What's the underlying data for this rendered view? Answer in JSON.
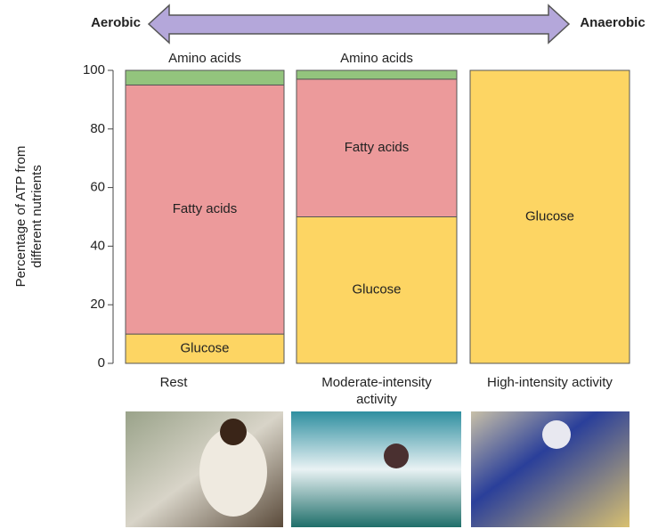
{
  "chart_data": {
    "type": "stacked_bar",
    "arrow_labels": [
      "Aerobic",
      "Anaerobic"
    ],
    "y_label": [
      "Percentage of ATP from",
      "different nutrients"
    ],
    "categories": [
      "Rest",
      "Moderate-intensity activity",
      "High-intensity activity"
    ],
    "series": [
      {
        "name": "Glucose",
        "color": "#fdd563",
        "values": [
          10,
          50,
          100
        ]
      },
      {
        "name": "Fatty acids",
        "color": "#ec9a9b",
        "values": [
          85,
          47,
          0
        ]
      },
      {
        "name": "Amino acids",
        "color": "#93c47d",
        "values": [
          5,
          3,
          0
        ]
      }
    ],
    "ylim": [
      0,
      100
    ],
    "yticks": [
      0,
      20,
      40,
      60,
      80,
      100
    ]
  }
}
